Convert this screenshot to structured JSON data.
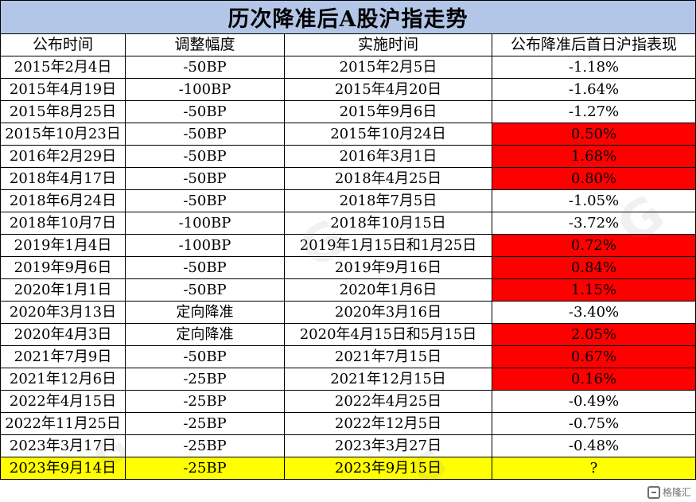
{
  "title": "历次降准后A股沪指走势",
  "columns": [
    "公布时间",
    "调整幅度",
    "实施时间",
    "公布降准后首日沪指表现"
  ],
  "rows": [
    {
      "announce": "2015年2月4日",
      "change": "-50BP",
      "effective": "2015年2月5日",
      "perf": "-1.18%",
      "positive": false
    },
    {
      "announce": "2015年4月19日",
      "change": "-100BP",
      "effective": "2015年4月20日",
      "perf": "-1.64%",
      "positive": false
    },
    {
      "announce": "2015年8月25日",
      "change": "-50BP",
      "effective": "2015年9月6日",
      "perf": "-1.27%",
      "positive": false
    },
    {
      "announce": "2015年10月23日",
      "change": "-50BP",
      "effective": "2015年10月24日",
      "perf": "0.50%",
      "positive": true
    },
    {
      "announce": "2016年2月29日",
      "change": "-50BP",
      "effective": "2016年3月1日",
      "perf": "1.68%",
      "positive": true
    },
    {
      "announce": "2018年4月17日",
      "change": "-50BP",
      "effective": "2018年4月25日",
      "perf": "0.80%",
      "positive": true
    },
    {
      "announce": "2018年6月24日",
      "change": "-50BP",
      "effective": "2018年7月5日",
      "perf": "-1.05%",
      "positive": false
    },
    {
      "announce": "2018年10月7日",
      "change": "-100BP",
      "effective": "2018年10月15日",
      "perf": "-3.72%",
      "positive": false
    },
    {
      "announce": "2019年1月4日",
      "change": "-100BP",
      "effective": "2019年1月15日和1月25日",
      "perf": "0.72%",
      "positive": true
    },
    {
      "announce": "2019年9月6日",
      "change": "-50BP",
      "effective": "2019年9月16日",
      "perf": "0.84%",
      "positive": true
    },
    {
      "announce": "2020年1月1日",
      "change": "-50BP",
      "effective": "2020年1月6日",
      "perf": "1.15%",
      "positive": true
    },
    {
      "announce": "2020年3月13日",
      "change": "定向降准",
      "effective": "2020年3月16日",
      "perf": "-3.40%",
      "positive": false
    },
    {
      "announce": "2020年4月3日",
      "change": "定向降准",
      "effective": "2020年4月15日和5月15日",
      "perf": "2.05%",
      "positive": true
    },
    {
      "announce": "2021年7月9日",
      "change": "-50BP",
      "effective": "2021年7月15日",
      "perf": "0.67%",
      "positive": true
    },
    {
      "announce": "2021年12月6日",
      "change": "-25BP",
      "effective": "2021年12月15日",
      "perf": "0.16%",
      "positive": true
    },
    {
      "announce": "2022年4月15日",
      "change": "-25BP",
      "effective": "2022年4月25日",
      "perf": "-0.49%",
      "positive": false
    },
    {
      "announce": "2022年11月25日",
      "change": "-25BP",
      "effective": "2022年12月5日",
      "perf": "-0.75%",
      "positive": false
    },
    {
      "announce": "2023年3月17日",
      "change": "-25BP",
      "effective": "2023年3月27日",
      "perf": "-0.48%",
      "positive": false
    },
    {
      "announce": "2023年9月14日",
      "change": "-25BP",
      "effective": "2023年9月15日",
      "perf": "?",
      "positive": false,
      "highlight": true
    }
  ],
  "colors": {
    "title_bg": "#b4c6e7",
    "positive_bg": "#ff0000",
    "highlight_bg": "#ffff00",
    "border": "#000000"
  },
  "watermark": {
    "brand": "格隆汇"
  }
}
